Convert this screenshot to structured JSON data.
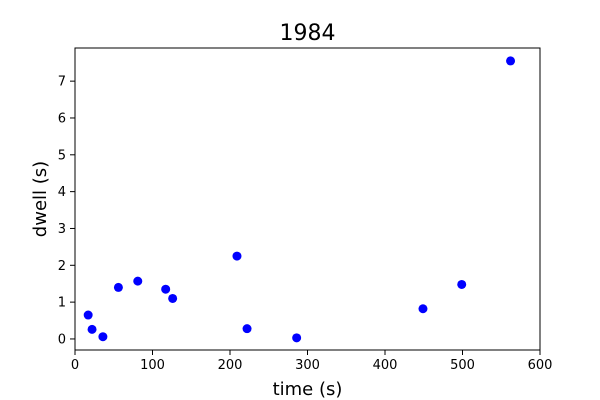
{
  "chart_data": {
    "type": "scatter",
    "title": "1984",
    "xlabel": "time (s)",
    "ylabel": "dwell (s)",
    "xlim": [
      0,
      600
    ],
    "ylim": [
      -0.3,
      7.9
    ],
    "xticks": [
      0,
      100,
      200,
      300,
      400,
      500,
      600
    ],
    "yticks": [
      0,
      1,
      2,
      3,
      4,
      5,
      6,
      7
    ],
    "grid": false,
    "marker_color": "#0000ff",
    "points": [
      {
        "x": 17,
        "y": 0.65
      },
      {
        "x": 22,
        "y": 0.26
      },
      {
        "x": 36,
        "y": 0.06
      },
      {
        "x": 56,
        "y": 1.4
      },
      {
        "x": 81,
        "y": 1.57
      },
      {
        "x": 117,
        "y": 1.35
      },
      {
        "x": 126,
        "y": 1.1
      },
      {
        "x": 209,
        "y": 2.25
      },
      {
        "x": 222,
        "y": 0.28
      },
      {
        "x": 286,
        "y": 0.03
      },
      {
        "x": 449,
        "y": 0.82
      },
      {
        "x": 499,
        "y": 1.48
      },
      {
        "x": 562,
        "y": 7.55
      }
    ]
  }
}
